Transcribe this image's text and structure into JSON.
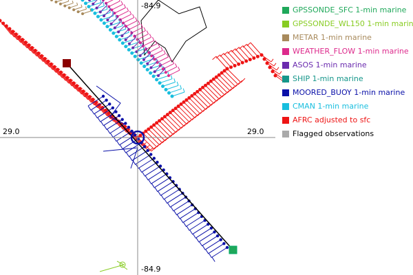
{
  "map": {
    "labels": {
      "top": "-84.9",
      "bottom": "-84.9",
      "left": "29.0",
      "right": "29.0"
    },
    "legend": [
      {
        "label": "GPSSONDE_SFC 1-min marine",
        "color": "#1fa85a"
      },
      {
        "label": "GPSSONDE_WL150 1-min marine",
        "color": "#88cc22"
      },
      {
        "label": "METAR 1-min marine",
        "color": "#a88a5c"
      },
      {
        "label": "WEATHER_FLOW 1-min marine",
        "color": "#dd2a8c"
      },
      {
        "label": "ASOS 1-min marine",
        "color": "#6a2aae"
      },
      {
        "label": "SHIP 1-min marine",
        "color": "#15968a"
      },
      {
        "label": "MOORED_BUOY 1-min marine",
        "color": "#0a10a8"
      },
      {
        "label": "CMAN 1-min marine",
        "color": "#18bede"
      },
      {
        "label": "AFRC adjusted to sfc",
        "color": "#ee1414"
      },
      {
        "label": "Flagged observations",
        "color": "#aaaaaa"
      }
    ]
  }
}
